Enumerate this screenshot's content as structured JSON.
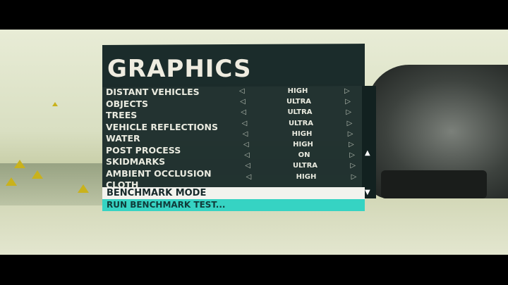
{
  "title": "GRAPHICS",
  "settings": [
    {
      "label": "DISTANT VEHICLES",
      "value": "HIGH"
    },
    {
      "label": "OBJECTS",
      "value": "ULTRA"
    },
    {
      "label": "TREES",
      "value": "ULTRA"
    },
    {
      "label": "VEHICLE REFLECTIONS",
      "value": "ULTRA"
    },
    {
      "label": "WATER",
      "value": "HIGH"
    },
    {
      "label": "POST PROCESS",
      "value": "HIGH"
    },
    {
      "label": "SKIDMARKS",
      "value": "ON"
    },
    {
      "label": "AMBIENT OCCLUSION",
      "value": "ULTRA"
    },
    {
      "label": "CLOTH",
      "value": "HIGH"
    }
  ],
  "benchmark_mode": "BENCHMARK MODE",
  "run_benchmark": "RUN BENCHMARK TEST...",
  "colors": {
    "panel": "#1b2c2b",
    "highlight": "#36d3c3",
    "header_row": "#f3f3ee"
  }
}
